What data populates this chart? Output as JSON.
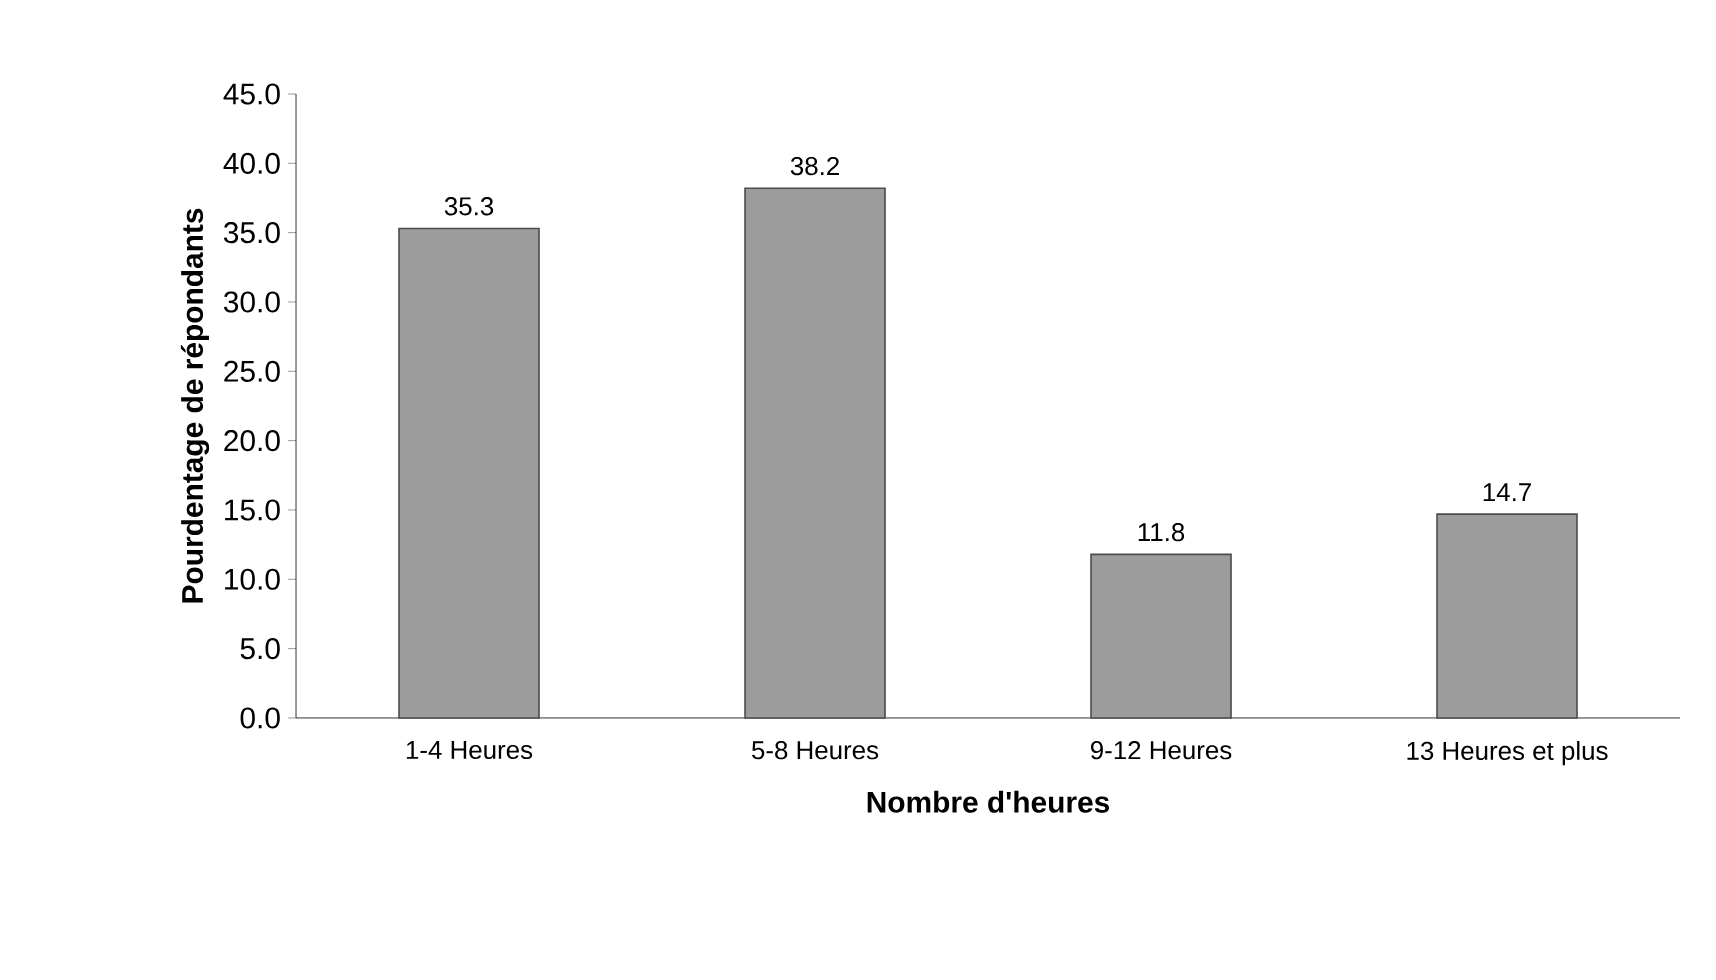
{
  "chart_data": {
    "type": "bar",
    "xlabel": "Nombre d'heures",
    "ylabel": "Pourdentage de répondants",
    "categories": [
      "1-4 Heures",
      "5-8 Heures",
      "9-12 Heures",
      "13 Heures et plus"
    ],
    "values": [
      35.3,
      38.2,
      11.8,
      14.7
    ],
    "color": "#9c9c9c",
    "ylim": [
      0,
      45
    ],
    "yticks": [
      {
        "value": 0,
        "label": "0.0"
      },
      {
        "value": 5,
        "label": "5.0"
      },
      {
        "value": 10,
        "label": "10.0"
      },
      {
        "value": 15,
        "label": "15.0"
      },
      {
        "value": 20,
        "label": "20.0"
      },
      {
        "value": 25,
        "label": "25.0"
      },
      {
        "value": 30,
        "label": "30.0"
      },
      {
        "value": 35,
        "label": "35.0"
      },
      {
        "value": 40,
        "label": "40.0"
      },
      {
        "value": 45,
        "label": "45.0"
      }
    ],
    "data_labels": true,
    "grid": false
  }
}
